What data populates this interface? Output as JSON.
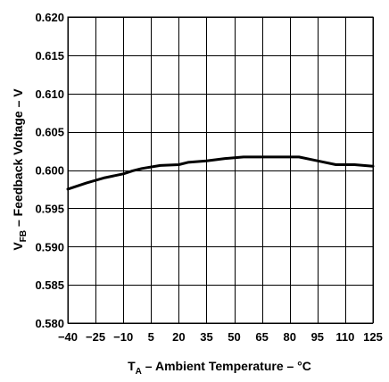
{
  "chart_data": {
    "type": "line",
    "title": "",
    "xlabel": {
      "main": "T",
      "sub": "A",
      "rest": " – Ambient Temperature – °C"
    },
    "ylabel": {
      "main": "V",
      "sub": "FB",
      "rest": " – Feedback Voltage – V"
    },
    "xlim": [
      -40,
      125
    ],
    "ylim": [
      0.58,
      0.62
    ],
    "xticks": [
      -40,
      -25,
      -10,
      5,
      20,
      35,
      50,
      65,
      80,
      95,
      110,
      125
    ],
    "xtick_labels": [
      "−40",
      "−25",
      "−10",
      "5",
      "20",
      "35",
      "50",
      "65",
      "80",
      "95",
      "110",
      "125"
    ],
    "yticks": [
      0.58,
      0.585,
      0.59,
      0.595,
      0.6,
      0.605,
      0.61,
      0.615,
      0.62
    ],
    "ytick_labels": [
      "0.580",
      "0.585",
      "0.590",
      "0.595",
      "0.600",
      "0.605",
      "0.610",
      "0.615",
      "0.620"
    ],
    "grid": true,
    "series": [
      {
        "x": [
          -40,
          -30,
          -20,
          -10,
          -5,
          0,
          10,
          20,
          25,
          35,
          45,
          55,
          60,
          70,
          80,
          85,
          95,
          105,
          115,
          125
        ],
        "y": [
          0.5975,
          0.5983,
          0.599,
          0.5995,
          0.5999,
          0.6002,
          0.6006,
          0.6007,
          0.601,
          0.6012,
          0.6015,
          0.6017,
          0.6017,
          0.6017,
          0.6017,
          0.6017,
          0.6012,
          0.6007,
          0.6007,
          0.6005
        ]
      }
    ]
  }
}
